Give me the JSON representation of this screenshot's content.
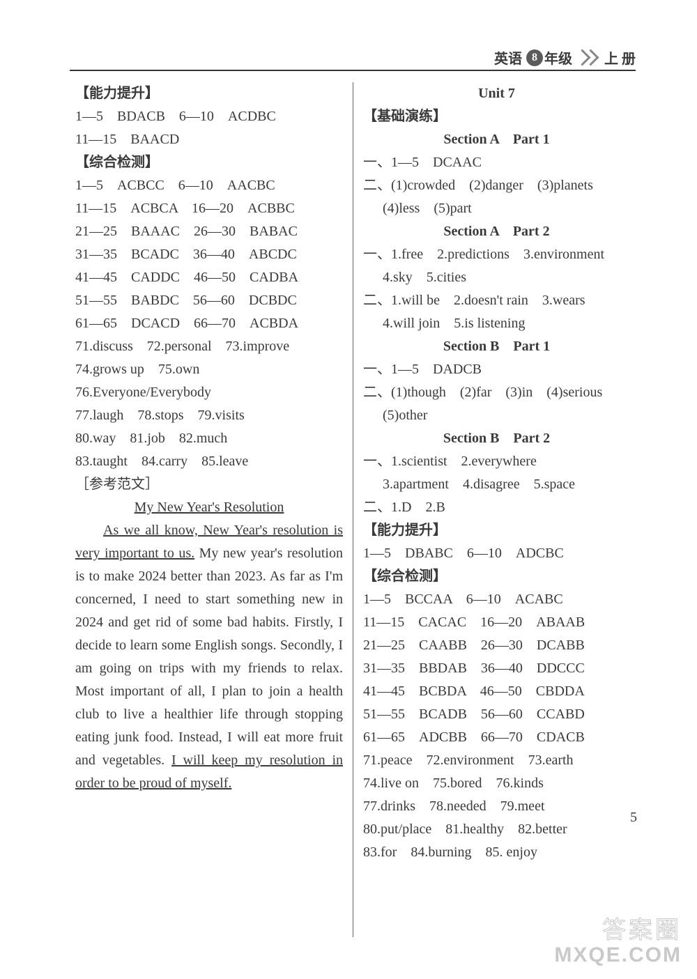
{
  "header": {
    "subject": "英语",
    "grade_num": "8",
    "grade_suffix": "年级",
    "volume": "上 册"
  },
  "left": {
    "skill_head": "【能力提升】",
    "skill_lines": [
      "1—5　BDACB　6—10　ACDBC",
      "11—15　BAACD"
    ],
    "comp_head": "【综合检测】",
    "comp_lines": [
      "1—5　ACBCC　6—10　AACBC",
      "11—15　ACBCA　16—20　ACBBC",
      "21—25　BAAAC　26—30　BABAC",
      "31—35　BCADC　36—40　ABCDC",
      "41—45　CADDC　46—50　CADBA",
      "51—55　BABDC　56—60　DCBDC",
      "61—65　DCACD　66—70　ACBDA",
      "71.discuss　72.personal　73.improve",
      "74.grows up　75.own",
      "76.Everyone/Everybody",
      "77.laugh　78.stops　79.visits",
      "80.way　81.job　82.much",
      "83.taught　84.carry　85.leave"
    ],
    "ref_head": "［参考范文］",
    "essay_title": "My New Year's Resolution",
    "essay_u1": "As we all know, New Year's resolution is very important to us.",
    "essay_mid": " My new year's resolution is to make 2024 better than 2023. As far as I'm concerned, I need to start something new in 2024 and get rid of some bad habits. Firstly, I decide to learn some English songs. Secondly, I am going on trips with my friends to relax. Most important of all, I plan to join a health club to live a healthier life through stopping eating junk food. Instead, I will eat more fruit and vegetables. ",
    "essay_u2": "I will keep my resolution in order to be proud of myself."
  },
  "right": {
    "unit_title": "Unit 7",
    "basic_head": "【基础演练】",
    "secA1_title": "Section A　Part 1",
    "secA1_lines": [
      "一、1—5　DCAAC",
      "二、(1)crowded　(2)danger　(3)planets"
    ],
    "secA1_indent": "(4)less　(5)part",
    "secA2_title": "Section A　Part 2",
    "secA2_l1": "一、1.free　2.predictions　3.environment",
    "secA2_l1b": "4.sky　5.cities",
    "secA2_l2": "二、1.will be　2.doesn't rain　3.wears",
    "secA2_l2b": "4.will join　5.is listening",
    "secB1_title": "Section B　Part 1",
    "secB1_l1": "一、1—5　DADCB",
    "secB1_l2": "二、(1)though　(2)far　(3)in　(4)serious",
    "secB1_l2b": "(5)other",
    "secB2_title": "Section B　Part 2",
    "secB2_l1": "一、1.scientist　2.everywhere",
    "secB2_l1b": "3.apartment　4.disagree　5.space",
    "secB2_l2": "二、1.D　2.B",
    "skill_head": "【能力提升】",
    "skill_line": "1—5　DBABC　6—10　ADCBC",
    "comp_head": "【综合检测】",
    "comp_lines": [
      "1—5　BCCAA　6—10　ACABC",
      "11—15　CACAC　16—20　ABAAB",
      "21—25　CAABB　26—30　DCABB",
      "31—35　BBDAB　36—40　DDCCC",
      "41—45　BCBDA　46—50　CBDDA",
      "51—55　BCADB　56—60　CCABD",
      "61—65　ADCBB　66—70　CDACB",
      "71.peace　72.environment　73.earth",
      "74.live on　75.bored　76.kinds",
      "77.drinks　78.needed　79.meet",
      "80.put/place　81.healthy　82.better",
      "83.for　84.burning　85. enjoy"
    ]
  },
  "page_number": "5",
  "watermark": {
    "line1": "答案圈",
    "line2": "MXQE.COM"
  }
}
